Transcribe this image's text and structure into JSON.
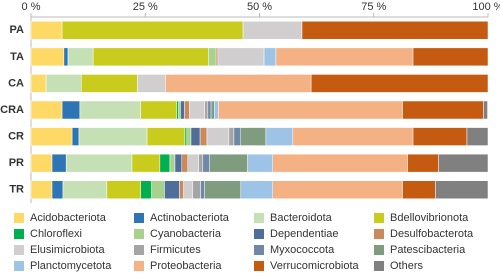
{
  "chart_data": {
    "type": "stacked_barh",
    "categories": [
      "PA",
      "TA",
      "CA",
      "CRA",
      "CR",
      "PR",
      "TR"
    ],
    "xlim": [
      0,
      100
    ],
    "xticks": [
      {
        "value": 0,
        "label": "0 %"
      },
      {
        "value": 25,
        "label": "25 %"
      },
      {
        "value": 50,
        "label": "50 %"
      },
      {
        "value": 75,
        "label": "75 %"
      },
      {
        "value": 100,
        "label": "100 %"
      }
    ],
    "series": [
      {
        "name": "Acidobacteriota",
        "color": "#ffd966",
        "values": [
          6.8,
          7.2,
          3.3,
          6.8,
          9,
          4.6,
          4.6
        ]
      },
      {
        "name": "Actinobacteriota",
        "color": "#2e75b6",
        "values": [
          0,
          0.9,
          0,
          3.9,
          1.5,
          3.1,
          2.4
        ]
      },
      {
        "name": "Bacteroidota",
        "color": "#c5e0b4",
        "values": [
          0,
          5.5,
          7.7,
          13.3,
          14.9,
          14.4,
          9.6
        ]
      },
      {
        "name": "Bdellovibrionota",
        "color": "#c9cc1c",
        "values": [
          39.6,
          25.2,
          12.3,
          7.9,
          8.3,
          6.1,
          7.4
        ]
      },
      {
        "name": "Chloroflexi",
        "color": "#00b050",
        "values": [
          0,
          0,
          0,
          0.4,
          0.4,
          2.2,
          2.4
        ]
      },
      {
        "name": "Cyanobacteria",
        "color": "#a9d18e",
        "values": [
          0,
          1.7,
          0,
          0.4,
          0.9,
          1.1,
          2.8
        ]
      },
      {
        "name": "Dependentiae",
        "color": "#4f6f9a",
        "values": [
          0,
          0,
          0,
          0.9,
          2,
          1.5,
          3.3
        ]
      },
      {
        "name": "Desulfobacterota",
        "color": "#c9895a",
        "values": [
          0,
          0.4,
          0,
          1.1,
          1.5,
          1.3,
          0.9
        ]
      },
      {
        "name": "Elusimicrobiota",
        "color": "#d0cece",
        "values": [
          12.9,
          10.1,
          6.1,
          3.3,
          4.8,
          2.4,
          2
        ]
      },
      {
        "name": "Firmicutes",
        "color": "#a5a5a5",
        "values": [
          0,
          0,
          0,
          0.7,
          1.1,
          0.9,
          1.7
        ]
      },
      {
        "name": "Myxococcota",
        "color": "#6f87a8",
        "values": [
          0,
          0,
          0,
          0.7,
          1.5,
          1.5,
          0.9
        ]
      },
      {
        "name": "Patescibacteria",
        "color": "#7f9c7f",
        "values": [
          0,
          0,
          0,
          0.7,
          5.5,
          8.3,
          7.9
        ]
      },
      {
        "name": "Planctomycetota",
        "color": "#9dc3e6",
        "values": [
          0,
          2.6,
          0,
          0.9,
          5.9,
          5.5,
          7
        ]
      },
      {
        "name": "Proteobacteria",
        "color": "#f4b183",
        "values": [
          0,
          30,
          31.9,
          40.3,
          26.3,
          29.5,
          28.4
        ]
      },
      {
        "name": "Verrucomicrobiota",
        "color": "#c55a11",
        "values": [
          40.7,
          16.4,
          38.7,
          17.7,
          11.8,
          6.8,
          7.2
        ]
      },
      {
        "name": "Others",
        "color": "#808080",
        "values": [
          0,
          0,
          0,
          0.9,
          4.6,
          10.8,
          11.5
        ]
      }
    ]
  }
}
